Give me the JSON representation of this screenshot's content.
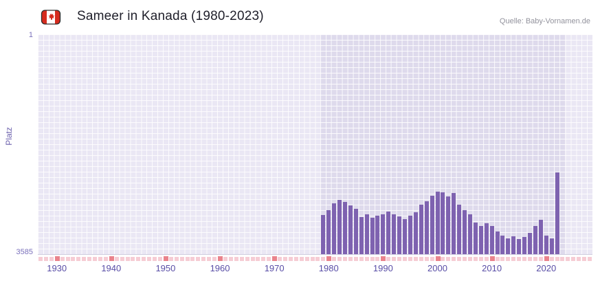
{
  "header": {
    "title": "Sameer in Kanada (1980-2023)",
    "source": "Quelle: Baby-Vornamen.de"
  },
  "axes": {
    "y_label": "Platz",
    "y_top_tick": "1",
    "y_bottom_tick": "3585"
  },
  "chart_data": {
    "type": "bar",
    "title": "Sameer in Kanada (1980-2023)",
    "ylabel": "Platz",
    "y_axis_inverted": true,
    "ylim": [
      3585,
      1
    ],
    "x_range": [
      1926.5,
      2028.5
    ],
    "x_ticks": [
      1930,
      1940,
      1950,
      1960,
      1970,
      1980,
      1990,
      2000,
      2010,
      2020
    ],
    "highlight_band_years": [
      1978.5,
      2023.5
    ],
    "years": [
      1979,
      1980,
      1981,
      1982,
      1983,
      1984,
      1985,
      1986,
      1987,
      1988,
      1989,
      1990,
      1991,
      1992,
      1993,
      1994,
      1995,
      1996,
      1997,
      1998,
      1999,
      2000,
      2001,
      2002,
      2003,
      2004,
      2005,
      2006,
      2007,
      2008,
      2009,
      2010,
      2011,
      2012,
      2013,
      2014,
      2015,
      2016,
      2017,
      2018,
      2019,
      2020,
      2021,
      2022
    ],
    "ranks": [
      2950,
      2870,
      2760,
      2700,
      2730,
      2790,
      2850,
      2980,
      2940,
      2990,
      2960,
      2930,
      2890,
      2930,
      2970,
      3010,
      2960,
      2900,
      2780,
      2720,
      2630,
      2560,
      2580,
      2640,
      2590,
      2780,
      2870,
      2930,
      3070,
      3120,
      3080,
      3130,
      3220,
      3280,
      3330,
      3290,
      3340,
      3300,
      3240,
      3130,
      3020,
      3280,
      3330,
      2250
    ],
    "no_data_marker_years": "every year on the axis; darker marker on decade years"
  },
  "colors": {
    "accent_bar": "#7e62b0",
    "plot_bg": "#eae7f4",
    "band_bg": "#dedaec",
    "title_text": "#20202b",
    "source_text": "#92929c",
    "axis_label_text": "#6c61ad",
    "y_tick_text": "#7a70bb",
    "x_tick_text": "#584da6",
    "marker_light": "#f6ccd4",
    "marker_dark": "#ea838c",
    "flag_red": "#d52b1e"
  }
}
